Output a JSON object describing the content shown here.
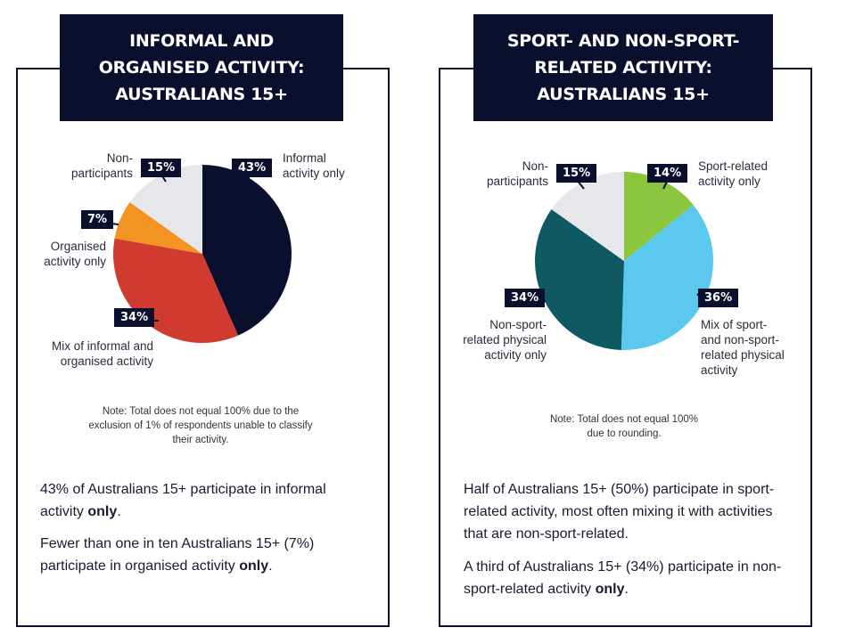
{
  "colors": {
    "navy": "#0b0f2e",
    "informal": "#0b0f2e",
    "organised": "#f39422",
    "mix_left": "#d03a2f",
    "nonpart": "#e6e7ea",
    "sport": "#8cc63f",
    "mix_right": "#5bc8ef",
    "nonsport": "#0f5a62"
  },
  "left": {
    "title": "INFORMAL AND\nORGANISED ACTIVITY:\nAUSTRALIANS 15+",
    "note": "Note: Total does not equal 100% due to the\nexclusion of 1% of respondents unable to classify\ntheir activity.",
    "para1_pre": "43% of Australians 15+ participate in informal activity ",
    "para1_bold": "only",
    "para1_post": ".",
    "para2_pre": "Fewer than one in ten Australians 15+ (7%) participate in organised activity ",
    "para2_bold": "only",
    "para2_post": "."
  },
  "right": {
    "title": "SPORT- AND NON-SPORT-\nRELATED ACTIVITY:\nAUSTRALIANS 15+",
    "note": "Note: Total does not equal 100%\ndue to rounding.",
    "para1": "Half of Australians 15+ (50%) participate in sport-related activity, most often mixing it with activities that are non-sport-related.",
    "para2_pre": "A third of Australians 15+ (34%) participate in non-sport-related activity ",
    "para2_bold": "only",
    "para2_post": "."
  },
  "chart_data": [
    {
      "type": "pie",
      "title": "INFORMAL AND ORGANISED ACTIVITY: AUSTRALIANS 15+",
      "slices": [
        {
          "name": "Informal activity only",
          "value": 43,
          "label": "43%",
          "color": "#0b0f2e"
        },
        {
          "name": "Mix of informal and organised activity",
          "value": 34,
          "label": "34%",
          "color": "#d03a2f"
        },
        {
          "name": "Organised activity only",
          "value": 7,
          "label": "7%",
          "color": "#f39422"
        },
        {
          "name": "Non-participants",
          "value": 15,
          "label": "15%",
          "color": "#e6e7ea"
        }
      ]
    },
    {
      "type": "pie",
      "title": "SPORT- AND NON-SPORT-RELATED ACTIVITY: AUSTRALIANS 15+",
      "slices": [
        {
          "name": "Sport-related activity only",
          "value": 14,
          "label": "14%",
          "color": "#8cc63f"
        },
        {
          "name": "Mix of sport- and non-sport-related physical activity",
          "value": 36,
          "label": "36%",
          "color": "#5bc8ef"
        },
        {
          "name": "Non-sport-related physical activity only",
          "value": 34,
          "label": "34%",
          "color": "#0f5a62"
        },
        {
          "name": "Non-participants",
          "value": 15,
          "label": "15%",
          "color": "#e6e7ea"
        }
      ]
    }
  ],
  "labels": {
    "left": {
      "nonpart": "Non-\nparticipants",
      "informal": "Informal\nactivity only",
      "organised": "Organised\nactivity only",
      "mix": "Mix of informal and\norganised activity"
    },
    "right": {
      "nonpart": "Non-\nparticipants",
      "sport": "Sport-related\nactivity only",
      "nonsport": "Non-sport-\nrelated physical\nactivity only",
      "mix": "Mix of sport-\nand non-sport-\nrelated physical\nactivity"
    }
  }
}
